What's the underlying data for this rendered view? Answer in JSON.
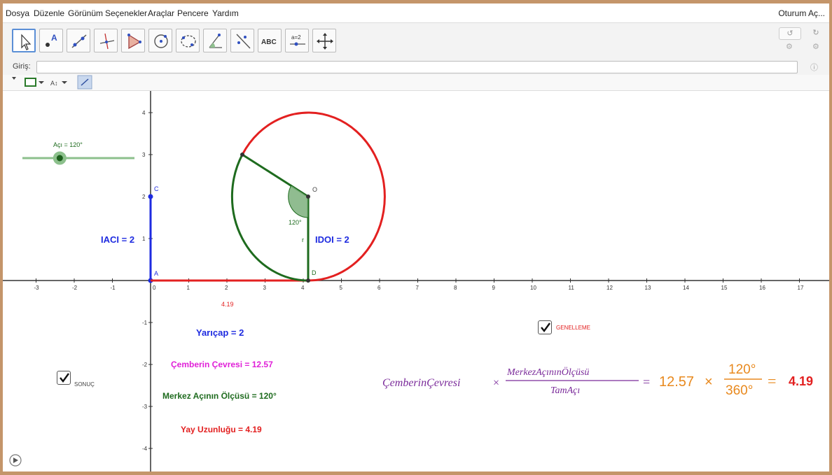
{
  "menubar": {
    "items": [
      "Dosya",
      "Düzenle",
      "Görünüm",
      "Seçenekler",
      "Araçlar",
      "Pencere",
      "Yardım"
    ],
    "login": "Oturum Aç..."
  },
  "toolbar": {
    "tools": [
      {
        "name": "move-tool-icon",
        "selected": true
      },
      {
        "name": "point-tool-icon"
      },
      {
        "name": "line-tool-icon"
      },
      {
        "name": "perpendicular-tool-icon"
      },
      {
        "name": "polygon-tool-icon"
      },
      {
        "name": "circle-tool-icon"
      },
      {
        "name": "conic-tool-icon"
      },
      {
        "name": "angle-tool-icon"
      },
      {
        "name": "reflect-tool-icon"
      },
      {
        "name": "text-tool-icon",
        "text": "ABC"
      },
      {
        "name": "slider-tool-icon",
        "text": "a=2"
      },
      {
        "name": "move-view-tool-icon"
      }
    ]
  },
  "input_bar": {
    "label": "Giriş:"
  },
  "stylebar": {
    "text_size": "A↕"
  },
  "graphics": {
    "x_ticks": [
      "-3",
      "-2",
      "-1",
      "0",
      "1",
      "2",
      "3",
      "4",
      "5",
      "6",
      "7",
      "8",
      "9",
      "10",
      "11",
      "12",
      "13",
      "14",
      "15",
      "16",
      "17"
    ],
    "y_ticks": [
      "4",
      "3",
      "2",
      "1",
      "-1",
      "-2",
      "-3",
      "-4"
    ],
    "slider_label": "Açı = 120°",
    "slider_value_deg": 120,
    "point_labels": {
      "A": "A",
      "C": "C",
      "O": "O",
      "D": "D"
    },
    "segment_r": "r",
    "angle_label": "120°",
    "arc_length_label": "4.19",
    "ac_label": "IACI = 2",
    "od_label": "IDOI = 2",
    "radius_text": "Yarıçap = 2",
    "circumference_text": "Çemberin Çevresi = 12.57",
    "central_angle_text": "Merkez Açının Ölçüsü = 120°",
    "arc_length_text": "Yay Uzunluğu = 4.19",
    "sonuc_label": "SONUÇ",
    "genelleme_label": "GENELLEME",
    "formula": {
      "left": "ÇemberinÇevresi",
      "times": "×",
      "num": "MerkezAçınınÖlçüsü",
      "den": "TamAçı",
      "eq1": "=",
      "value": "12.57",
      "times2": "×",
      "num2": "120°",
      "den2": "360°",
      "eq2": "=",
      "result": "4.19"
    },
    "colors": {
      "red": "#e32020",
      "green": "#1e6b1e",
      "blue": "#1e2be0",
      "magenta": "#e020d8",
      "purple": "#7a2a9a",
      "orange": "#e8891e"
    }
  }
}
